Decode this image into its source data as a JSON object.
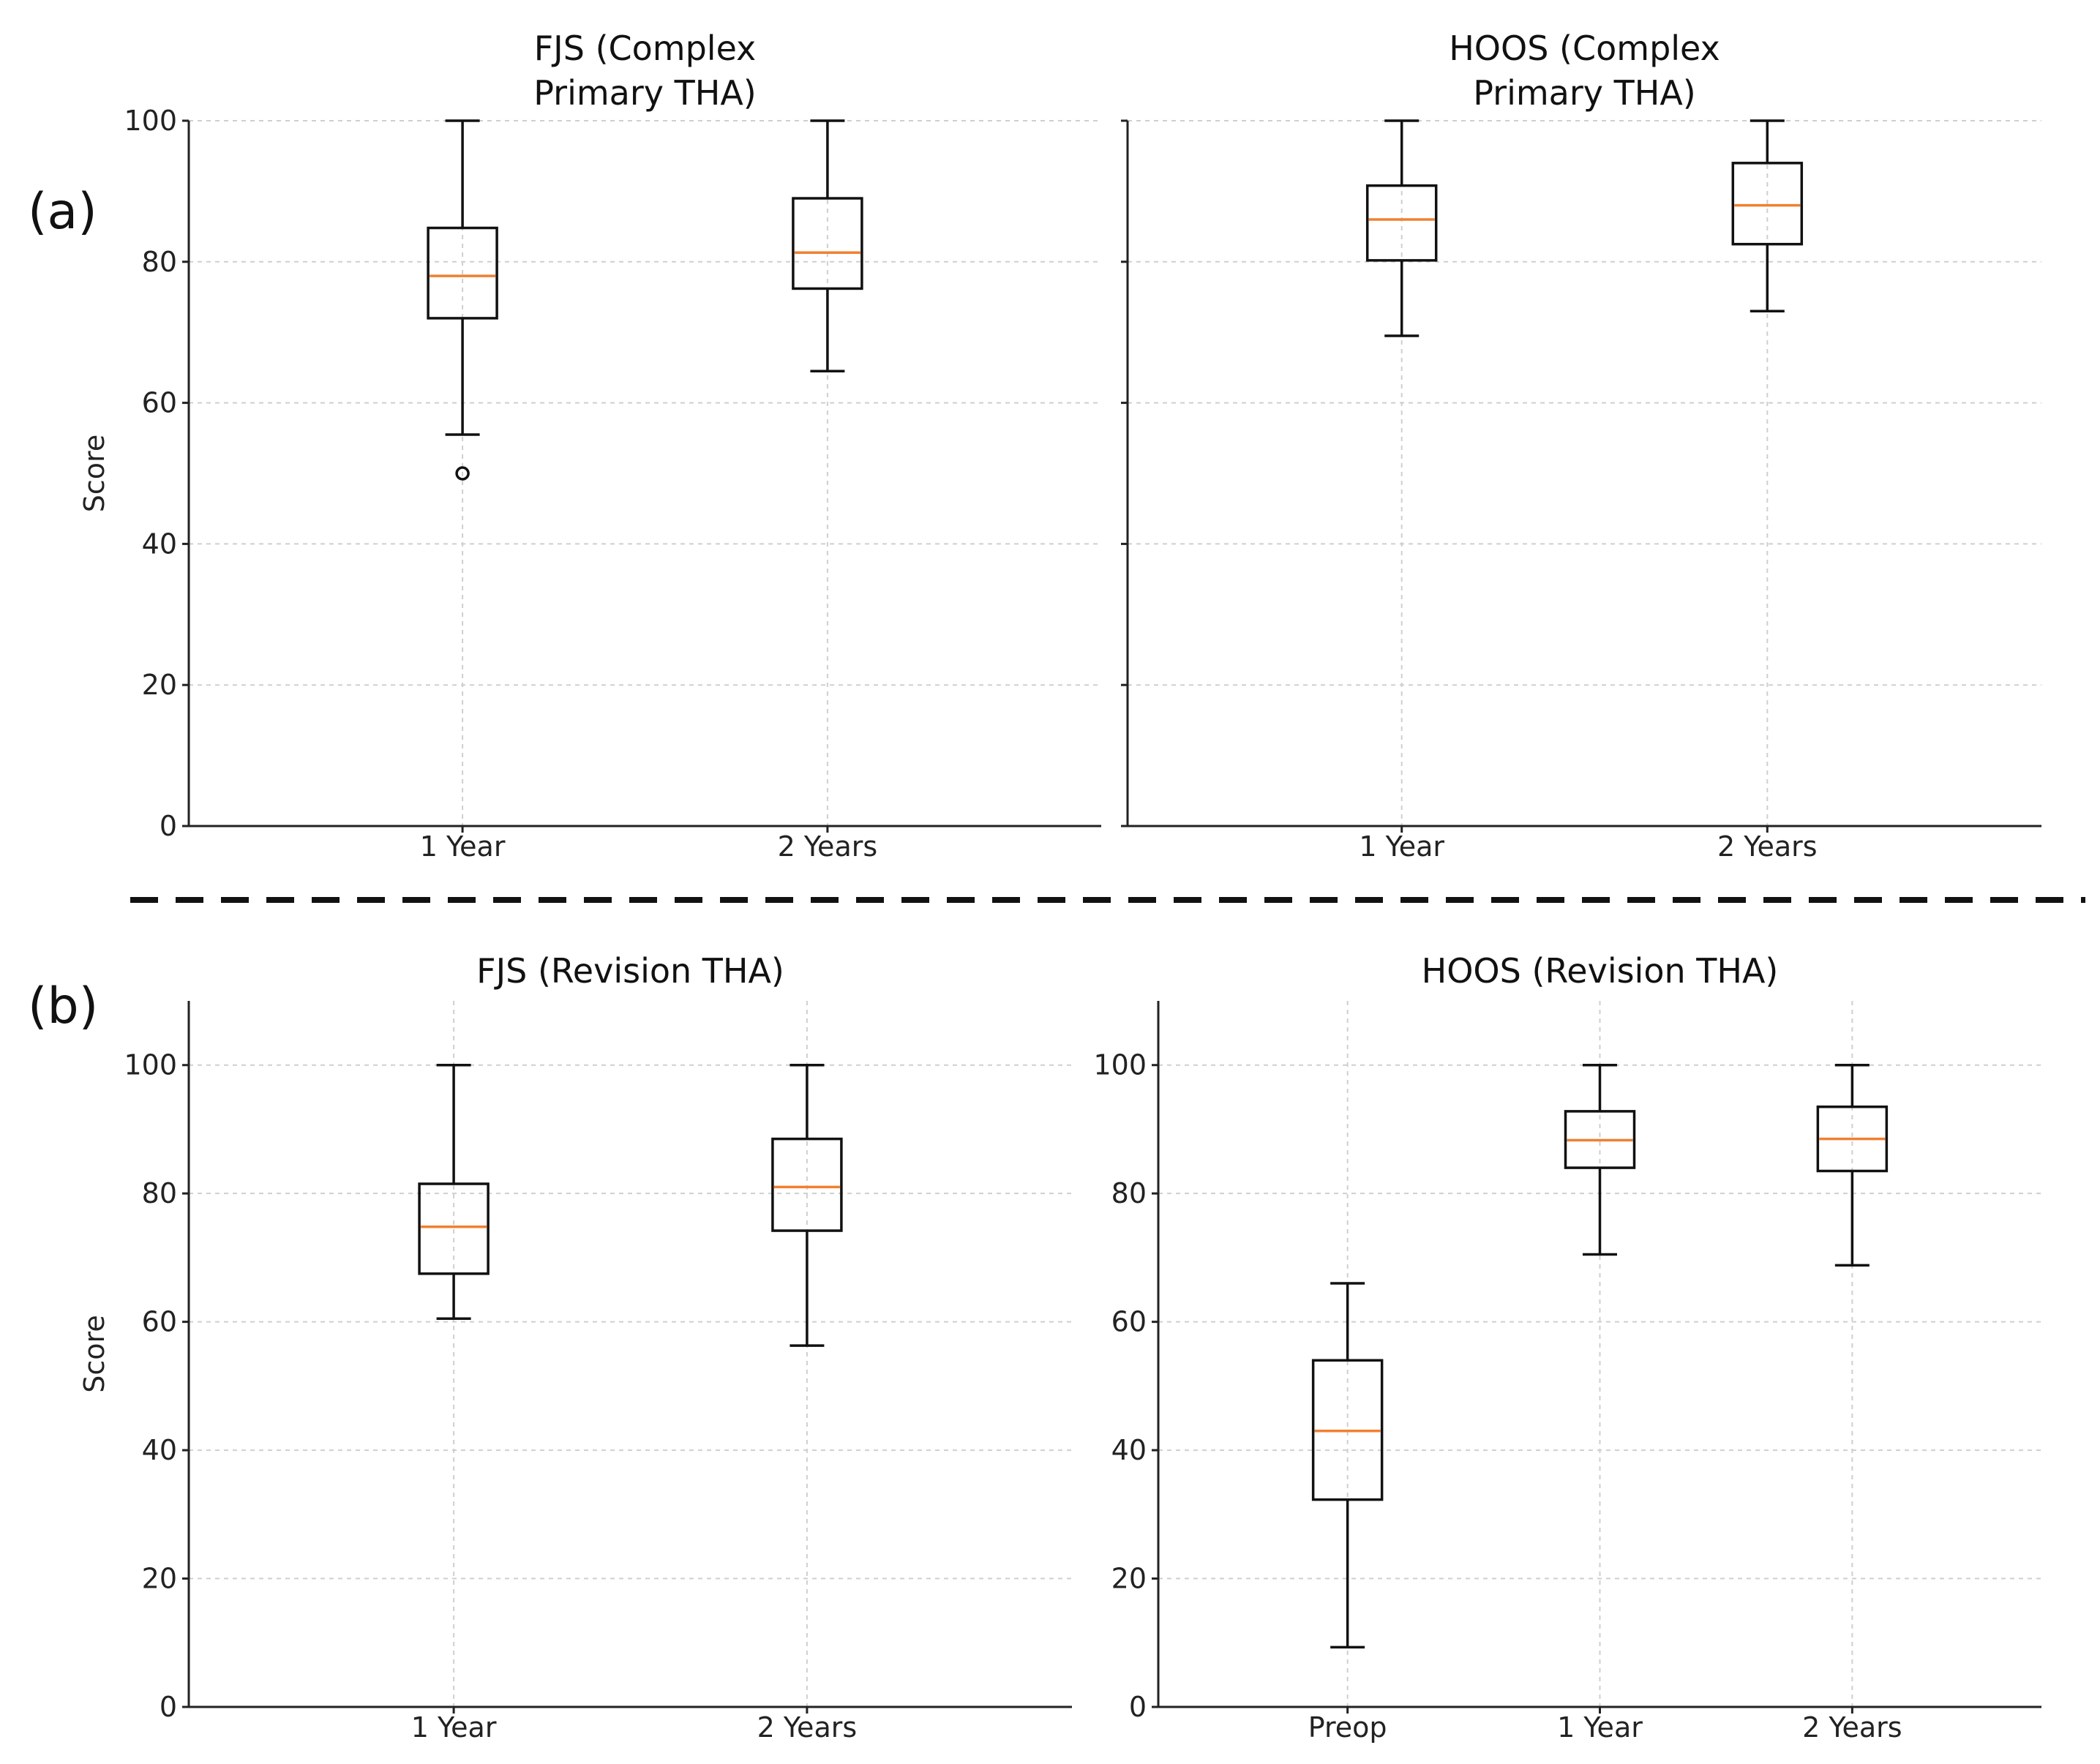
{
  "panel_labels": {
    "a": "(a)",
    "b": "(b)"
  },
  "chart_data": [
    {
      "id": "fjs-primary",
      "type": "box",
      "title": [
        "FJS (Complex",
        "Primary THA)"
      ],
      "ylabel": "Score",
      "ylim": [
        0,
        100
      ],
      "yticks": [
        0,
        20,
        40,
        60,
        80,
        100
      ],
      "categories": [
        "1 Year",
        "2 Years"
      ],
      "boxes": [
        {
          "whislo": 55.5,
          "q1": 72,
          "med": 78,
          "q3": 84.8,
          "whishi": 100,
          "fliers": [
            50
          ]
        },
        {
          "whislo": 64.5,
          "q1": 76.2,
          "med": 81.3,
          "q3": 89,
          "whishi": 100,
          "fliers": []
        }
      ]
    },
    {
      "id": "hoos-primary",
      "type": "box",
      "title": [
        "HOOS (Complex",
        "Primary THA)"
      ],
      "ylabel": "",
      "ylim": [
        0,
        100
      ],
      "yticks": [
        0,
        20,
        40,
        60,
        80,
        100
      ],
      "show_ytick_labels": false,
      "categories": [
        "1 Year",
        "2 Years"
      ],
      "boxes": [
        {
          "whislo": 69.5,
          "q1": 80.2,
          "med": 86,
          "q3": 90.8,
          "whishi": 100,
          "fliers": []
        },
        {
          "whislo": 73,
          "q1": 82.5,
          "med": 88,
          "q3": 94,
          "whishi": 100,
          "fliers": []
        }
      ]
    },
    {
      "id": "fjs-revision",
      "type": "box",
      "title": [
        "FJS (Revision THA)"
      ],
      "ylabel": "Score",
      "ylim": [
        0,
        110
      ],
      "yticks": [
        0,
        20,
        40,
        60,
        80,
        100
      ],
      "categories": [
        "1 Year",
        "2 Years"
      ],
      "boxes": [
        {
          "whislo": 60.5,
          "q1": 67.5,
          "med": 74.8,
          "q3": 81.5,
          "whishi": 100,
          "fliers": []
        },
        {
          "whislo": 56.3,
          "q1": 74.2,
          "med": 81,
          "q3": 88.5,
          "whishi": 100,
          "fliers": []
        }
      ]
    },
    {
      "id": "hoos-revision",
      "type": "box",
      "title": [
        "HOOS (Revision THA)"
      ],
      "ylabel": "",
      "ylim": [
        0,
        110
      ],
      "yticks": [
        0,
        20,
        40,
        60,
        80,
        100
      ],
      "categories": [
        "Preop",
        "1 Year",
        "2 Years"
      ],
      "boxes": [
        {
          "whislo": 9.3,
          "q1": 32.3,
          "med": 43,
          "q3": 54,
          "whishi": 66,
          "fliers": []
        },
        {
          "whislo": 70.5,
          "q1": 84,
          "med": 88.3,
          "q3": 92.8,
          "whishi": 100,
          "fliers": []
        },
        {
          "whislo": 68.8,
          "q1": 83.5,
          "med": 88.5,
          "q3": 93.5,
          "whishi": 100,
          "fliers": []
        }
      ]
    }
  ]
}
